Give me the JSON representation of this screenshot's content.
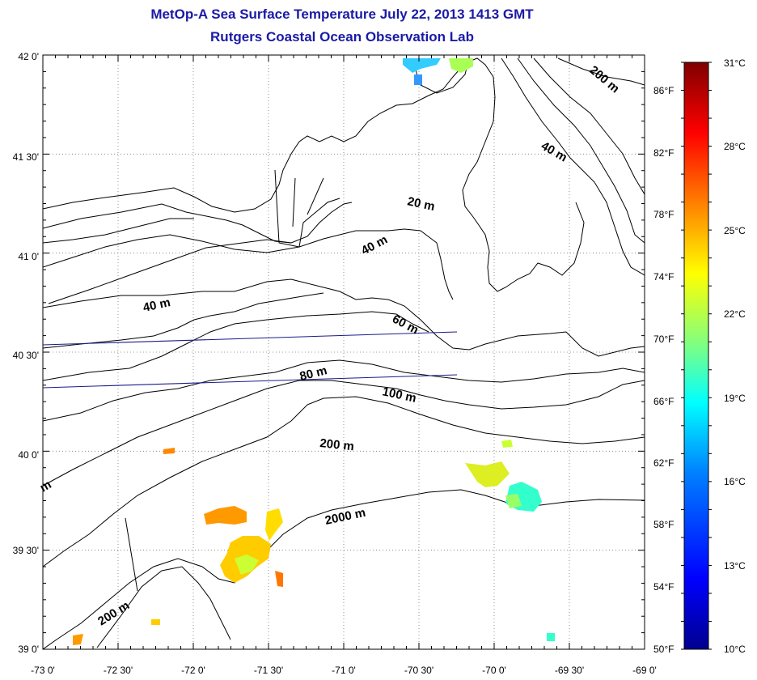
{
  "title": "MetOp-A Sea Surface Temperature July 22, 2013 1413 GMT",
  "subtitle": "Rutgers Coastal Ocean Observation Lab",
  "map": {
    "lon_range": [
      -73,
      -69
    ],
    "lat_range": [
      39,
      42
    ],
    "lon_ticks": [
      "-73 0'",
      "-72 30'",
      "-72 0'",
      "-71 30'",
      "-71 0'",
      "-70 30'",
      "-70 0'",
      "-69 30'",
      "-69 0'"
    ],
    "lat_ticks": [
      "39 0'",
      "39 30'",
      "40 0'",
      "40 30'",
      "41 0'",
      "41 30'",
      "42 0'"
    ],
    "grid": true,
    "fahrenheit_ticks": [
      "50°F",
      "54°F",
      "58°F",
      "62°F",
      "66°F",
      "70°F",
      "74°F",
      "78°F",
      "82°F",
      "86°F"
    ],
    "contour_labels": [
      "200 m",
      "40 m",
      "20 m",
      "40 m",
      "40 m",
      "60 m",
      "80 m",
      "100 m",
      "200 m",
      "2000 m",
      "200 m",
      "m"
    ]
  },
  "colorbar": {
    "min_c": 10,
    "max_c": 31,
    "celsius_ticks": [
      "10°C",
      "13°C",
      "16°C",
      "19°C",
      "22°C",
      "25°C",
      "28°C",
      "31°C"
    ],
    "colors": [
      "#00008f",
      "#0000ff",
      "#0080ff",
      "#00ffff",
      "#80ff80",
      "#ffff00",
      "#ff8000",
      "#ff0000",
      "#800000"
    ]
  }
}
